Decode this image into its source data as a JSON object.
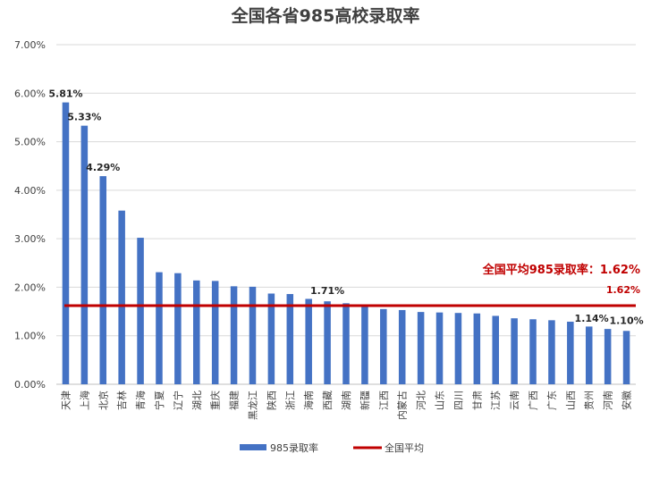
{
  "chart_data": {
    "type": "bar",
    "title": "全国各省985高校录取率",
    "categories": [
      "天津",
      "上海",
      "北京",
      "吉林",
      "青海",
      "宁夏",
      "辽宁",
      "湖北",
      "重庆",
      "福建",
      "黑龙江",
      "陕西",
      "浙江",
      "海南",
      "西藏",
      "湖南",
      "新疆",
      "江西",
      "内蒙古",
      "河北",
      "山东",
      "四川",
      "甘肃",
      "江苏",
      "云南",
      "广西",
      "广东",
      "山西",
      "贵州",
      "河南",
      "安徽"
    ],
    "series": [
      {
        "name": "985录取率",
        "color": "#4472c4",
        "values": [
          5.81,
          5.33,
          4.29,
          3.58,
          3.02,
          2.31,
          2.29,
          2.14,
          2.13,
          2.02,
          2.01,
          1.87,
          1.86,
          1.76,
          1.71,
          1.67,
          1.64,
          1.55,
          1.53,
          1.49,
          1.48,
          1.47,
          1.46,
          1.41,
          1.36,
          1.34,
          1.32,
          1.29,
          1.19,
          1.14,
          1.1
        ]
      }
    ],
    "average": {
      "name": "全国平均",
      "value": 1.62,
      "color": "#c00000",
      "annotation": "全国平均985录取率：1.62%",
      "value_label": "1.62%"
    },
    "data_labels": [
      {
        "index": 0,
        "text": "5.81%"
      },
      {
        "index": 1,
        "text": "5.33%"
      },
      {
        "index": 2,
        "text": "4.29%"
      },
      {
        "index": 14,
        "text": "1.71%"
      },
      {
        "index": 29,
        "text": "1.14%"
      },
      {
        "index": 30,
        "text": "1.10%"
      }
    ],
    "yticks": [
      "0.00%",
      "1.00%",
      "2.00%",
      "3.00%",
      "4.00%",
      "5.00%",
      "6.00%",
      "7.00%"
    ],
    "ylim": [
      0,
      7
    ],
    "grid": true,
    "legend_position": "bottom",
    "legend": [
      "985录取率",
      "全国平均"
    ]
  }
}
